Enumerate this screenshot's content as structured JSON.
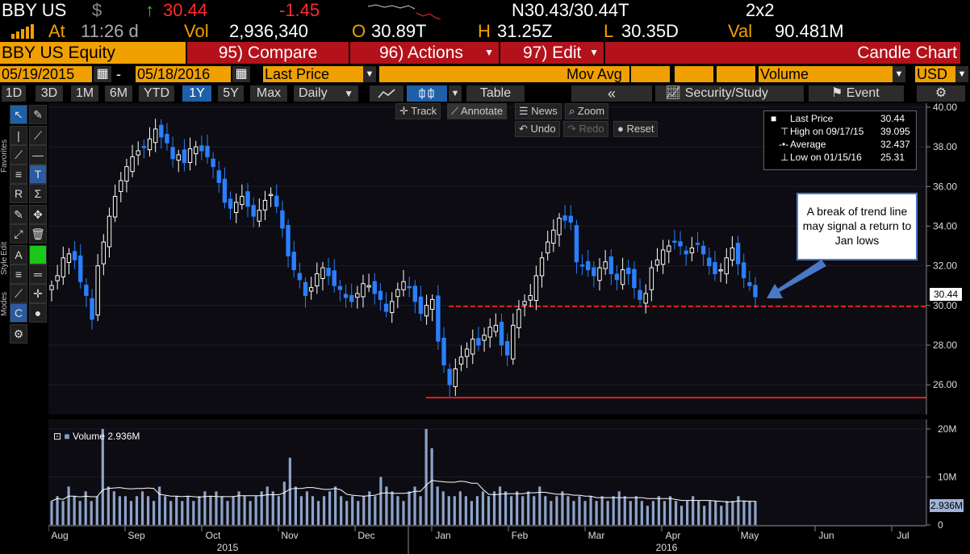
{
  "header": {
    "ticker": "BBY US",
    "currency_symbol": "$",
    "up_arrow": "↑",
    "last": "30.44",
    "change": "-1.45",
    "bid_ask": "N30.43/30.44T",
    "size": "2x2",
    "at_label": "At",
    "time": "11:26 d",
    "vol_label": "Vol",
    "volume": "2,936,340",
    "open_label": "O",
    "open": "30.89T",
    "high_label": "H",
    "high": "31.25Z",
    "low_label": "L",
    "low": "30.35D",
    "val_label": "Val",
    "value": "90.481M"
  },
  "menubar": {
    "security": "BBY US Equity",
    "compare": "95) Compare",
    "actions": "96) Actions",
    "edit": "97) Edit",
    "chart_type": "Candle Chart"
  },
  "settings": {
    "start_date": "05/19/2015",
    "dash": "-",
    "end_date": "05/18/2016",
    "field": "Last Price",
    "overlay": "Mov Avg",
    "lower": "Volume",
    "currency": "USD"
  },
  "toolbar": {
    "periods": [
      "1D",
      "3D",
      "1M",
      "6M",
      "YTD",
      "1Y",
      "5Y",
      "Max"
    ],
    "selected_period": "1Y",
    "frequency": "Daily",
    "table": "Table",
    "security_study": "Security/Study",
    "event": "Event"
  },
  "subtoolbar": {
    "track": "Track",
    "annotate": "Annotate",
    "news": "News",
    "zoom": "Zoom",
    "undo": "Undo",
    "redo": "Redo",
    "reset": "Reset"
  },
  "side_labels": {
    "favorites": "Favorites",
    "edit": "Edit",
    "style": "Style",
    "modes": "Modes"
  },
  "legend": {
    "last_label": "Last Price",
    "last_value": "30.44",
    "high_label": "High on 09/17/15",
    "high_value": "39.095",
    "avg_label": "Average",
    "avg_value": "32.437",
    "low_label": "Low on 01/15/16",
    "low_value": "25.31"
  },
  "annotation": {
    "text": "A break of trend line may signal a return to Jan lows"
  },
  "volume_legend": "Volume 2.936M",
  "price_tag": "30.44",
  "volume_tag": "2.936M",
  "colors": {
    "amber": "#f0a000",
    "red_bar": "#b3121b",
    "up_candle": "#ffffff",
    "down_candle": "#2a7fff",
    "trend_line": "#e02020",
    "callout_border": "#4a78c8"
  },
  "chart_data": {
    "type": "candlestick",
    "price_axis": {
      "ticks": [
        "40.00",
        "38.00",
        "36.00",
        "34.00",
        "32.00",
        "30.00",
        "28.00",
        "26.00"
      ],
      "ylim": [
        24.5,
        40.2
      ]
    },
    "volume_axis": {
      "ticks": [
        "20M",
        "10M",
        "0"
      ],
      "ylim": [
        0,
        22
      ]
    },
    "x_months": [
      "Aug",
      "Sep",
      "Oct",
      "Nov",
      "Dec",
      "Jan",
      "Feb",
      "Mar",
      "Apr",
      "May",
      "Jun",
      "Jul"
    ],
    "x_years": [
      "2015",
      "2016"
    ],
    "close_series_approx": [
      31.0,
      31.5,
      32.4,
      32.6,
      32.3,
      31.2,
      30.5,
      29.3,
      32.0,
      33.2,
      34.5,
      35.5,
      36.3,
      37.0,
      37.5,
      37.8,
      38.0,
      38.4,
      38.9,
      38.5,
      38.2,
      37.4,
      37.6,
      37.2,
      37.9,
      38.0,
      37.8,
      37.5,
      37.0,
      36.2,
      35.2,
      34.9,
      35.2,
      35.5,
      35.0,
      34.5,
      34.8,
      35.3,
      35.6,
      35.0,
      33.9,
      32.5,
      31.8,
      31.3,
      30.5,
      30.9,
      31.6,
      31.9,
      31.5,
      31.0,
      30.8,
      30.4,
      30.2,
      30.6,
      31.1,
      31.0,
      30.6,
      30.3,
      29.7,
      30.2,
      30.8,
      31.2,
      30.9,
      30.2,
      29.6,
      30.0,
      30.3,
      28.2,
      27.0,
      26.0,
      26.8,
      27.4,
      27.8,
      28.3,
      28.0,
      28.5,
      28.9,
      29.0,
      28.0,
      27.5,
      29.0,
      29.8,
      30.2,
      30.5,
      31.5,
      32.4,
      33.2,
      33.8,
      34.4,
      34.3,
      34.2,
      32.2,
      32.0,
      31.8,
      31.5,
      31.9,
      32.2,
      31.6,
      31.3,
      31.8,
      31.6,
      30.9,
      30.3,
      30.6,
      31.9,
      32.3,
      32.8,
      33.0,
      33.2,
      33.0,
      32.6,
      32.9,
      33.1,
      32.6,
      32.0,
      31.6,
      31.8,
      32.4,
      32.9,
      32.1,
      31.4,
      31.0,
      30.44
    ],
    "volume_series_approx": [
      5,
      6,
      5,
      8,
      6,
      5,
      7,
      5,
      6,
      20,
      8,
      7,
      6,
      6,
      5,
      6,
      7,
      6,
      5,
      8,
      6,
      5,
      6,
      5,
      6,
      5,
      6,
      7,
      6,
      7,
      6,
      5,
      6,
      7,
      6,
      5,
      6,
      7,
      8,
      7,
      6,
      9,
      14,
      8,
      6,
      7,
      6,
      5,
      6,
      7,
      8,
      6,
      5,
      6,
      5,
      6,
      7,
      6,
      10,
      8,
      7,
      6,
      5,
      7,
      8,
      6,
      20,
      16,
      8,
      7,
      6,
      6,
      7,
      6,
      5,
      6,
      7,
      6,
      7,
      8,
      7,
      6,
      7,
      6,
      7,
      6,
      8,
      6,
      5,
      6,
      7,
      6,
      5,
      6,
      5,
      6,
      5,
      6,
      5,
      6,
      7,
      6,
      5,
      6,
      5,
      4,
      5,
      6,
      5,
      6,
      5,
      4,
      5,
      6,
      5,
      4,
      5,
      5,
      4,
      5,
      5,
      6,
      5,
      5,
      5
    ],
    "trend_lines": [
      {
        "y": 29.95,
        "style": "dashed"
      },
      {
        "y": 25.35,
        "style": "solid"
      }
    ]
  }
}
